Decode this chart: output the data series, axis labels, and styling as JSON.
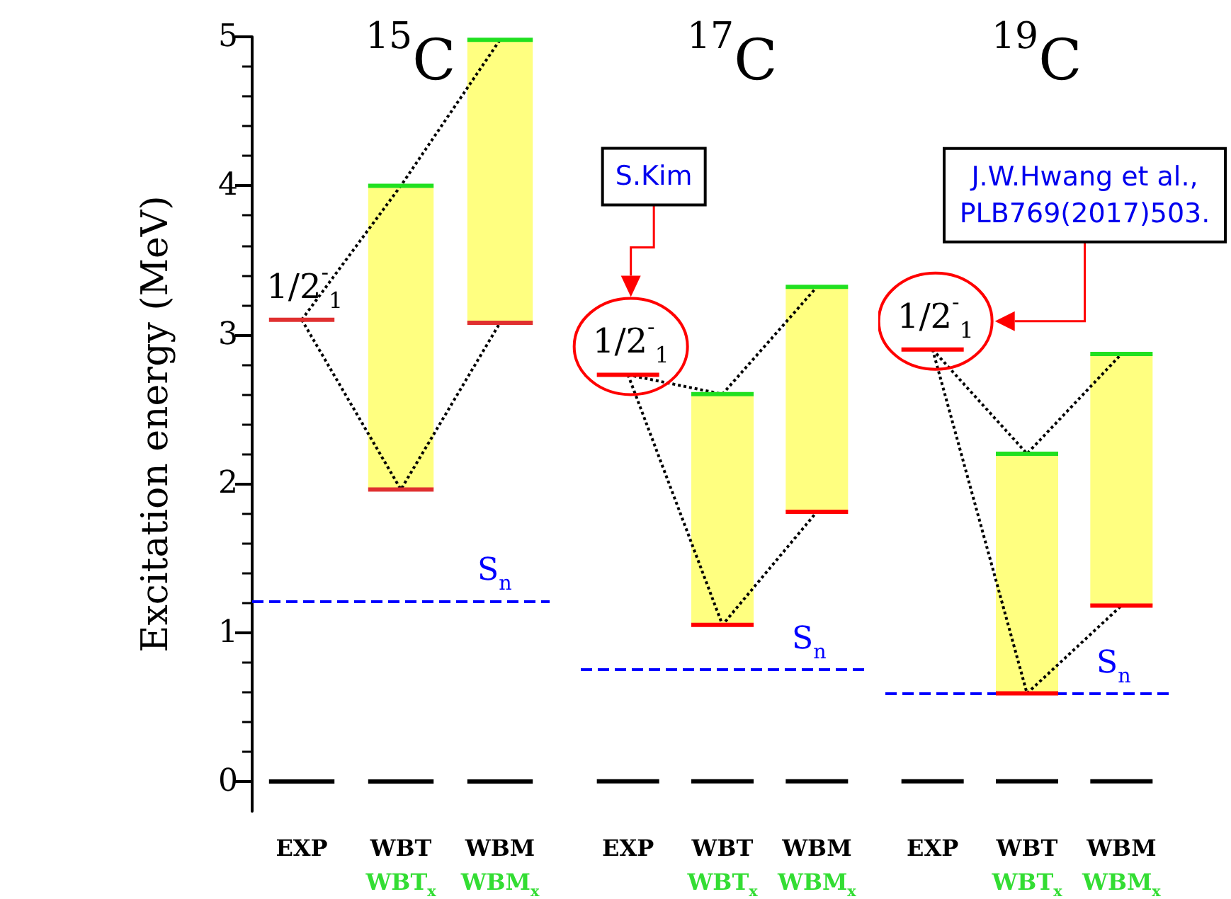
{
  "chart_data": [
    {
      "type": "bar",
      "title": "$^{15}$C",
      "ylabel": "Excitation energy (MeV)",
      "categories": [
        "EXP",
        "WBT\nWBT$_{x}$",
        "WBM\nWBM$_{x}$"
      ],
      "ylim": [
        -0.2,
        5
      ],
      "yticks": [
        0,
        1,
        2,
        3,
        4,
        5
      ],
      "ref_lines": [
        {
          "axis": "y",
          "value": 1.21,
          "label": "S$_{n}$",
          "color": "#0000ff",
          "line_style": "dashed"
        }
      ],
      "series": [
        {
          "type": "bar",
          "color": "#ffff80",
          "base": [
            null,
            1.96,
            3.08
          ],
          "values": [
            null,
            2.04,
            1.9
          ]
        },
        {
          "type": "line",
          "color": "#000000",
          "line_style": "dotted",
          "values": [
            3.1,
            1.96,
            3.08
          ]
        },
        {
          "type": "line",
          "color": "#000000",
          "line_style": "dotted",
          "values": [
            3.1,
            4.0,
            4.98
          ]
        },
        {
          "type": "bar",
          "color": "#e03030",
          "base": [
            3.1,
            1.96,
            3.08
          ],
          "values": [
            0,
            0,
            0
          ],
          "value_labels": [
            "1/2$^{-}$$_{1}$",
            null,
            null
          ]
        },
        {
          "type": "bar",
          "color": "#20e020",
          "base": [
            null,
            4.0,
            4.98
          ],
          "values": [
            null,
            0,
            0
          ]
        },
        {
          "type": "bar",
          "color": "#000000",
          "base": [
            0,
            0,
            0
          ],
          "values": [
            0,
            0,
            0
          ]
        }
      ]
    },
    {
      "type": "bar",
      "title": "$^{17}$C",
      "categories": [
        "EXP",
        "WBT\nWBT$_{x}$",
        "WBM\nWBM$_{x}$"
      ],
      "ylim": [
        0,
        5
      ],
      "yticks": [
        0,
        1,
        2,
        3,
        4,
        5
      ],
      "tick_labels": "x",
      "ref_lines": [
        {
          "axis": "y",
          "value": 0.75,
          "label": "S$_{n}$",
          "color": "#0000ff",
          "line_style": "dashed"
        }
      ],
      "annotations": [
        "S.Kim"
      ],
      "series": [
        {
          "type": "bar",
          "color": "#ffff80",
          "base": [
            null,
            1.05,
            1.81
          ],
          "values": [
            null,
            1.55,
            1.51
          ]
        },
        {
          "type": "line",
          "color": "#000000",
          "line_style": "dotted",
          "values": [
            2.73,
            1.05,
            1.81
          ]
        },
        {
          "type": "line",
          "color": "#000000",
          "line_style": "dotted",
          "values": [
            2.73,
            2.6,
            3.32
          ]
        },
        {
          "type": "bar",
          "color": "#ff0000",
          "base": [
            2.73,
            1.05,
            1.81
          ],
          "values": [
            0,
            0,
            0
          ],
          "value_labels": [
            "1/2$^{-}$$_{1}$",
            null,
            null
          ]
        },
        {
          "type": "bar",
          "color": "#20e020",
          "base": [
            null,
            2.6,
            3.32
          ],
          "values": [
            null,
            0,
            0
          ]
        },
        {
          "type": "bar",
          "color": "#000000",
          "base": [
            0,
            0,
            0
          ],
          "values": [
            0,
            0,
            0
          ]
        }
      ]
    },
    {
      "type": "bar",
      "title": "$^{19}$C",
      "categories": [
        "EXP",
        "WBT\nWBT$_{x}$",
        "WBM\nWBM$_{x}$"
      ],
      "ylim": [
        0,
        5
      ],
      "yticks": [
        0,
        1,
        2,
        3,
        4,
        5
      ],
      "tick_labels": "x",
      "ref_lines": [
        {
          "axis": "y",
          "value": 0.59,
          "label": "S$_{n}$",
          "color": "#0000ff",
          "line_style": "dashed"
        }
      ],
      "annotations": [
        "J.W.Hwang et al.,\nPLB769(2017)503."
      ],
      "series": [
        {
          "type": "bar",
          "color": "#ffff80",
          "base": [
            null,
            0.59,
            1.18
          ],
          "values": [
            null,
            1.61,
            1.69
          ]
        },
        {
          "type": "line",
          "color": "#000000",
          "line_style": "dotted",
          "values": [
            2.9,
            0.59,
            1.18
          ]
        },
        {
          "type": "line",
          "color": "#000000",
          "line_style": "dotted",
          "values": [
            2.9,
            2.2,
            2.87
          ]
        },
        {
          "type": "bar",
          "color": "#ff0000",
          "base": [
            2.9,
            0.59,
            1.18
          ],
          "values": [
            0,
            0,
            0
          ],
          "value_labels": [
            "1/2$^{-}$$_{1}$",
            null,
            null
          ]
        },
        {
          "type": "bar",
          "color": "#20e020",
          "base": [
            null,
            2.2,
            2.87
          ],
          "values": [
            null,
            0,
            0
          ]
        },
        {
          "type": "bar",
          "color": "#000000",
          "base": [
            0,
            0,
            0
          ],
          "values": [
            0,
            0,
            0
          ]
        }
      ]
    }
  ]
}
